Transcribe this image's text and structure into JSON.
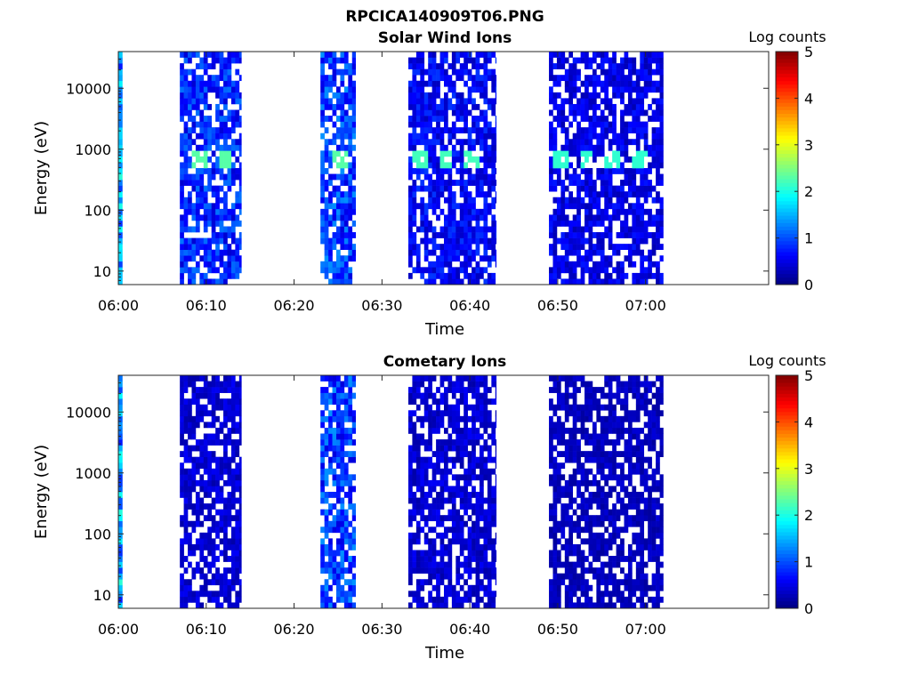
{
  "figure_title": "RPCICA140909T06.PNG",
  "chart_data": [
    {
      "type": "heatmap",
      "title": "Solar Wind Ions",
      "xlabel": "Time",
      "ylabel": "Energy (eV)",
      "x_ticks": [
        "06:00",
        "06:10",
        "06:20",
        "06:30",
        "06:40",
        "06:50",
        "07:00"
      ],
      "y_ticks": [
        "10",
        "100",
        "1000",
        "10000"
      ],
      "y_scale": "log",
      "ylim": [
        6,
        40000
      ],
      "colorbar": {
        "label": "Log counts",
        "range": [
          0,
          5
        ],
        "ticks": [
          "0",
          "1",
          "2",
          "3",
          "4",
          "5"
        ],
        "colormap": "jet"
      },
      "intervals": [
        {
          "start": "06:00",
          "end": "06:00",
          "level": 1.4
        },
        {
          "start": "06:07",
          "end": "06:13",
          "level": 0.8,
          "peaks_energy_eV": 700,
          "peak_level": 2.3,
          "peak_times": [
            "06:09",
            "06:12"
          ]
        },
        {
          "start": "06:23",
          "end": "06:26",
          "level": 0.9,
          "peaks_energy_eV": 700,
          "peak_level": 2.3,
          "peak_times": [
            "06:25"
          ]
        },
        {
          "start": "06:33",
          "end": "06:42",
          "level": 0.6,
          "peaks_energy_eV": 700,
          "peak_level": 2.2,
          "peak_times": [
            "06:34",
            "06:37",
            "06:40"
          ]
        },
        {
          "start": "06:49",
          "end": "07:01",
          "level": 0.5,
          "peaks_energy_eV": 700,
          "peak_level": 2.1,
          "peak_times": [
            "06:50",
            "06:53",
            "06:56",
            "06:59"
          ]
        }
      ]
    },
    {
      "type": "heatmap",
      "title": "Cometary Ions",
      "xlabel": "Time",
      "ylabel": "Energy (eV)",
      "x_ticks": [
        "06:00",
        "06:10",
        "06:20",
        "06:30",
        "06:40",
        "06:50",
        "07:00"
      ],
      "y_ticks": [
        "10",
        "100",
        "1000",
        "10000"
      ],
      "y_scale": "log",
      "ylim": [
        6,
        40000
      ],
      "colorbar": {
        "label": "Log counts",
        "range": [
          0,
          5
        ],
        "ticks": [
          "0",
          "1",
          "2",
          "3",
          "4",
          "5"
        ],
        "colormap": "jet"
      },
      "intervals": [
        {
          "start": "06:00",
          "end": "06:00",
          "level": 1.4
        },
        {
          "start": "06:07",
          "end": "06:13",
          "level": 0.4
        },
        {
          "start": "06:23",
          "end": "06:26",
          "level": 0.9
        },
        {
          "start": "06:33",
          "end": "06:42",
          "level": 0.4
        },
        {
          "start": "06:49",
          "end": "07:01",
          "level": 0.3
        }
      ]
    }
  ]
}
